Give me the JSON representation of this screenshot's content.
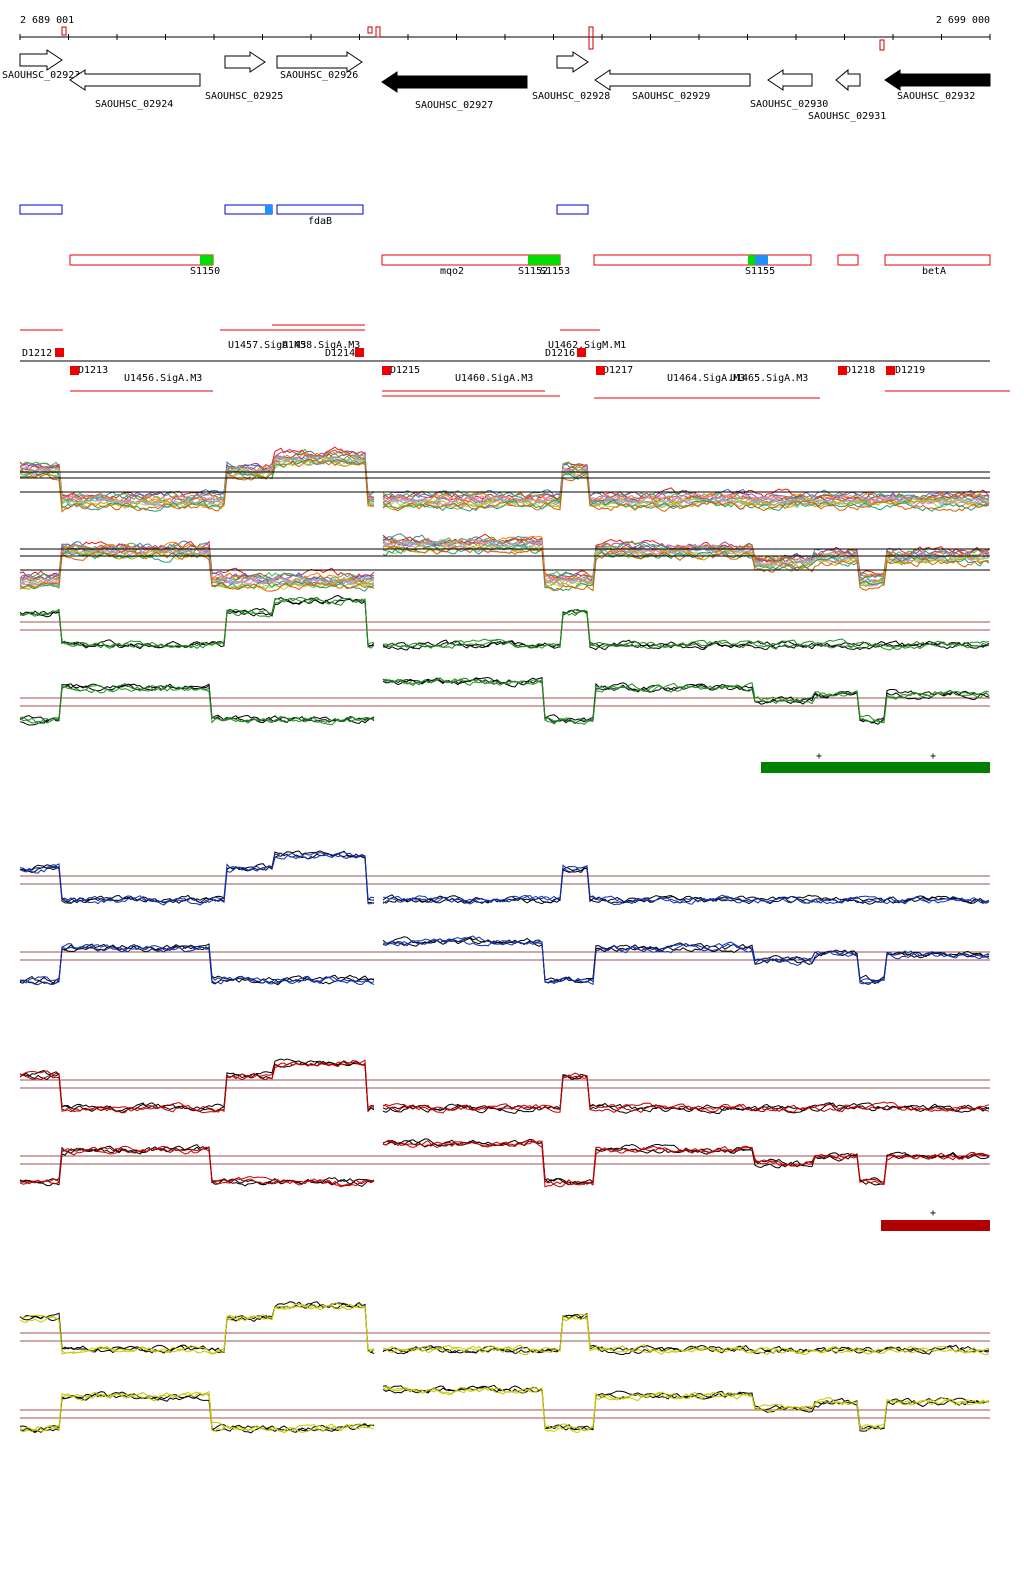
{
  "ruler": {
    "start": "2 689 001",
    "end": "2 699 000"
  },
  "genes": [
    {
      "label": "SAOUHSC_02923"
    },
    {
      "label": "SAOUHSC_02924"
    },
    {
      "label": "SAOUHSC_02925"
    },
    {
      "label": "SAOUHSC_02926"
    },
    {
      "label": "SAOUHSC_02927"
    },
    {
      "label": "SAOUHSC_02928"
    },
    {
      "label": "SAOUHSC_02929"
    },
    {
      "label": "SAOUHSC_02930"
    },
    {
      "label": "SAOUHSC_02931"
    },
    {
      "label": "SAOUHSC_02932"
    }
  ],
  "features": [
    "fdaB",
    "S1150",
    "mqo2",
    "S1152",
    "S1153",
    "S1155",
    "betA"
  ],
  "sites": [
    "D1212",
    "D1213",
    "U1456.SigA.M3",
    "U1457.SigA.M3",
    "U1458.SigA.M3",
    "D1214",
    "D1215",
    "U1460.SigA.M3",
    "D1216",
    "U1462.SigM.M1",
    "D1217",
    "U1464.SigA.M3",
    "U1465.SigA.M3",
    "D1218",
    "D1219"
  ],
  "marks": [
    "+",
    "+",
    "+"
  ]
}
